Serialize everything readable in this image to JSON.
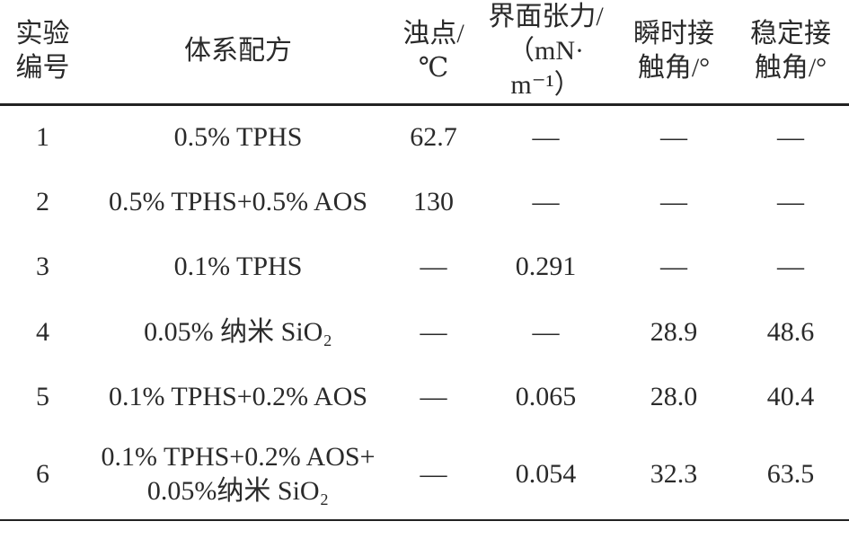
{
  "table": {
    "headers": [
      {
        "line1": "实验",
        "line2": "编号"
      },
      {
        "line1": "体系配方",
        "line2": ""
      },
      {
        "line1": "浊点/",
        "line2": "℃"
      },
      {
        "line1": "界面张力/",
        "line2": "（mN· m⁻¹）"
      },
      {
        "line1": "瞬时接",
        "line2": "触角/°"
      },
      {
        "line1": "稳定接",
        "line2": "触角/°"
      }
    ],
    "rows": [
      {
        "id": "1",
        "formula": [
          "0.5% TPHS"
        ],
        "cloud_point": "62.7",
        "ift": "—",
        "instant_angle": "—",
        "stable_angle": "—"
      },
      {
        "id": "2",
        "formula": [
          "0.5% TPHS+0.5% AOS"
        ],
        "cloud_point": "130",
        "ift": "—",
        "instant_angle": "—",
        "stable_angle": "—"
      },
      {
        "id": "3",
        "formula": [
          "0.1% TPHS"
        ],
        "cloud_point": "—",
        "ift": "0.291",
        "instant_angle": "—",
        "stable_angle": "—"
      },
      {
        "id": "4",
        "formula": [
          "0.05% 纳米 SiO₂"
        ],
        "cloud_point": "—",
        "ift": "—",
        "instant_angle": "28.9",
        "stable_angle": "48.6"
      },
      {
        "id": "5",
        "formula": [
          "0.1% TPHS+0.2% AOS"
        ],
        "cloud_point": "—",
        "ift": "0.065",
        "instant_angle": "28.0",
        "stable_angle": "40.4"
      },
      {
        "id": "6",
        "formula": [
          "0.1% TPHS+0.2% AOS+",
          "0.05%纳米 SiO₂"
        ],
        "cloud_point": "—",
        "ift": "0.054",
        "instant_angle": "32.3",
        "stable_angle": "63.5"
      }
    ]
  }
}
